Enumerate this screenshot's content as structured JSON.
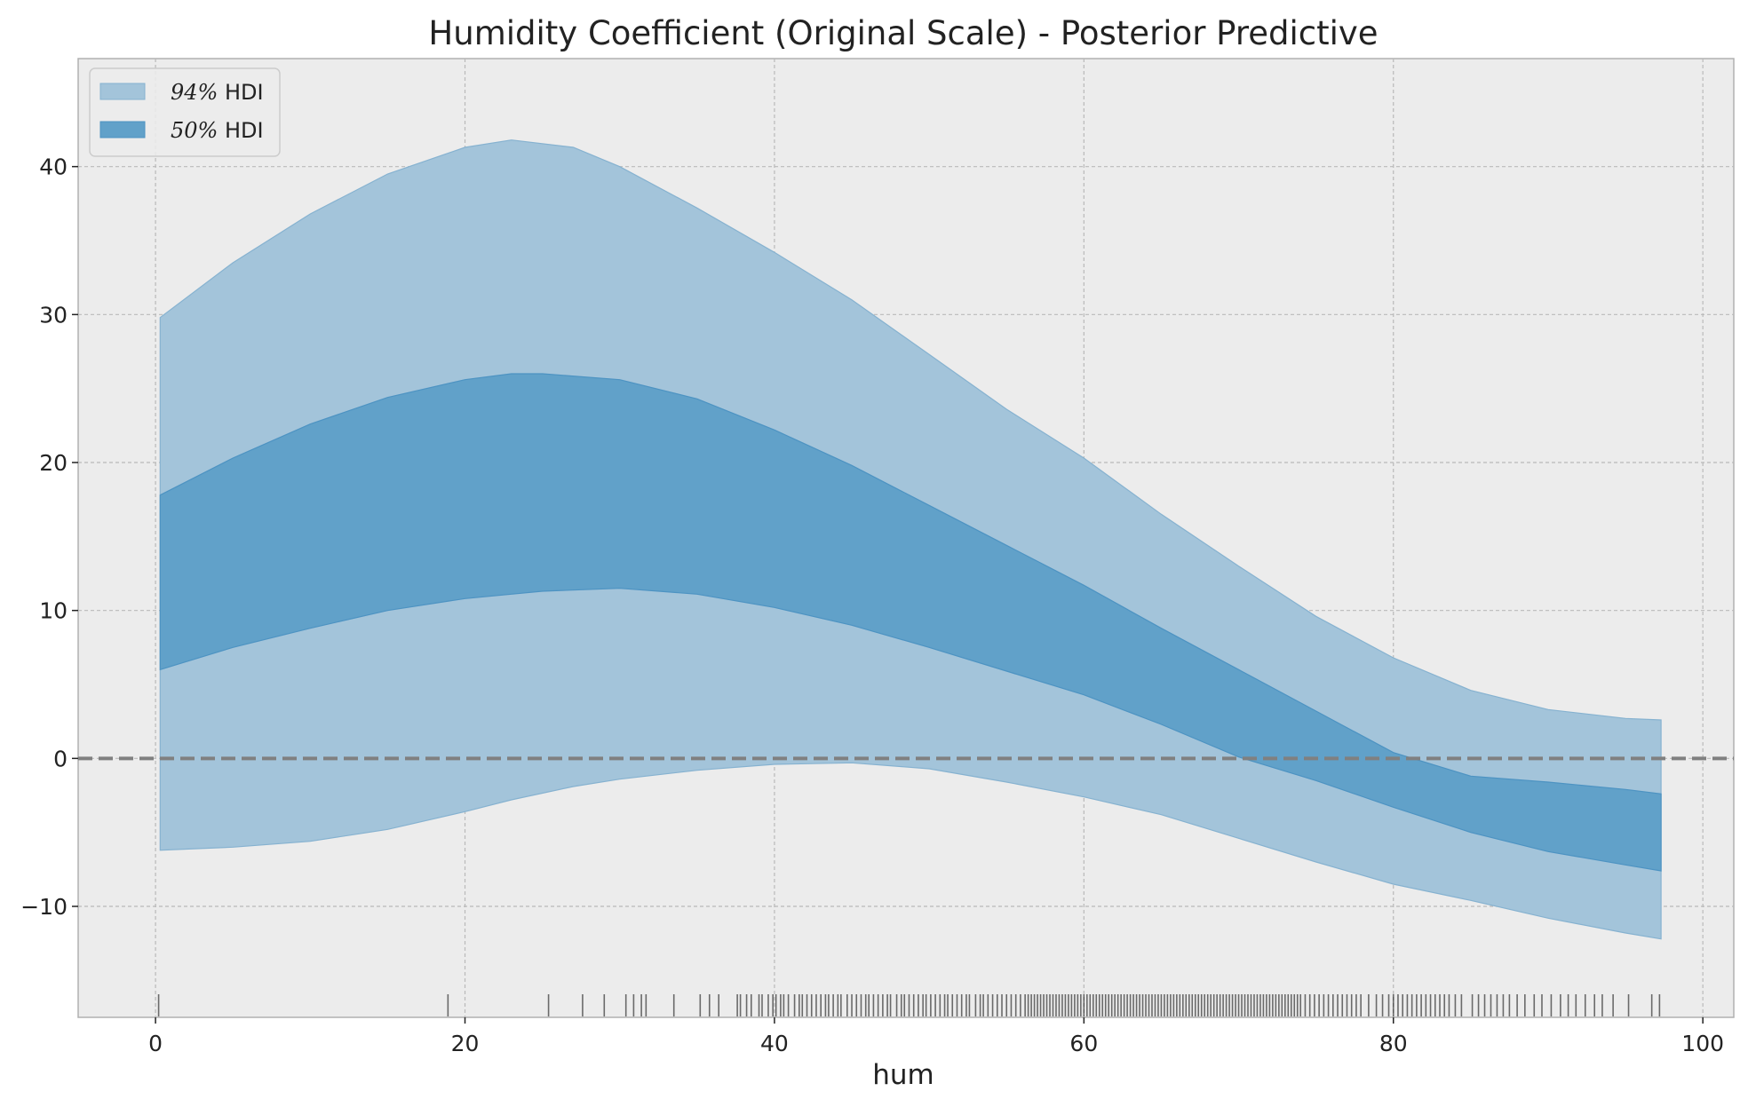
{
  "chart_data": {
    "type": "area",
    "title": "Humidity Coefficient (Original Scale) - Posterior Predictive",
    "xlabel": "hum",
    "ylabel": "",
    "xlim": [
      -5,
      102
    ],
    "ylim": [
      -17.5,
      47.3
    ],
    "x_ticks": [
      0,
      20,
      40,
      60,
      80,
      100
    ],
    "y_ticks": [
      -10,
      0,
      10,
      20,
      30,
      40
    ],
    "grid": true,
    "legend_position": "top-left",
    "colors": {
      "background": "#ececec",
      "band_94": "#a3c4da",
      "band_94_edge": "#86b2d0",
      "band_50": "#61a1c9",
      "band_50_edge": "#4d93c2",
      "reference_line": "#808080",
      "grid": "#b9b9b9",
      "rug": "#000000"
    },
    "reference_line_y": 0,
    "series": [
      {
        "name_math": "94%",
        "name_text": "HDI",
        "x": [
          0.3,
          5,
          10,
          15,
          20,
          23,
          27,
          30,
          35,
          40,
          45,
          50,
          55,
          60,
          65,
          70,
          75,
          80,
          85,
          90,
          95,
          97.3
        ],
        "upper": [
          29.8,
          33.5,
          36.8,
          39.5,
          41.3,
          41.8,
          41.3,
          40.0,
          37.2,
          34.2,
          31.0,
          27.3,
          23.6,
          20.3,
          16.5,
          13.0,
          9.6,
          6.8,
          4.6,
          3.3,
          2.7,
          2.6
        ],
        "lower": [
          -6.2,
          -6.0,
          -5.6,
          -4.8,
          -3.6,
          -2.8,
          -1.9,
          -1.4,
          -0.8,
          -0.4,
          -0.3,
          -0.7,
          -1.6,
          -2.6,
          -3.8,
          -5.4,
          -7.0,
          -8.5,
          -9.6,
          -10.8,
          -11.8,
          -12.2
        ]
      },
      {
        "name_math": "50%",
        "name_text": "HDI",
        "x": [
          0.3,
          5,
          10,
          15,
          20,
          23,
          25,
          30,
          35,
          40,
          45,
          50,
          55,
          60,
          65,
          70,
          75,
          80,
          85,
          90,
          95,
          97.3
        ],
        "upper": [
          17.8,
          20.3,
          22.6,
          24.4,
          25.6,
          26.0,
          26.0,
          25.6,
          24.3,
          22.2,
          19.8,
          17.1,
          14.4,
          11.7,
          8.8,
          6.0,
          3.2,
          0.4,
          -1.2,
          -1.6,
          -2.1,
          -2.4
        ],
        "lower": [
          6.0,
          7.5,
          8.8,
          10.0,
          10.8,
          11.1,
          11.3,
          11.5,
          11.1,
          10.2,
          9.0,
          7.5,
          5.9,
          4.3,
          2.3,
          0.1,
          -1.5,
          -3.3,
          -5.0,
          -6.3,
          -7.2,
          -7.6
        ]
      }
    ],
    "rug_x": [
      0.2,
      18.9,
      25.4,
      27.6,
      29.0,
      30.4,
      30.9,
      31.4,
      31.7,
      33.5,
      35.2,
      35.8,
      36.4,
      37.6,
      37.8,
      38.2,
      38.5,
      39.0,
      39.2,
      39.6,
      39.9,
      40.1,
      40.4,
      40.6,
      40.9,
      41.3,
      41.6,
      41.8,
      42.1,
      42.4,
      42.7,
      43.0,
      43.3,
      43.5,
      43.8,
      44.1,
      44.3,
      44.7,
      45.0,
      45.3,
      45.6,
      45.9,
      46.1,
      46.4,
      46.7,
      47.0,
      47.3,
      47.5,
      47.9,
      48.2,
      48.4,
      48.7,
      49.0,
      49.3,
      49.6,
      49.8,
      50.1,
      50.4,
      50.7,
      51.0,
      51.2,
      51.5,
      51.8,
      52.1,
      52.4,
      52.6,
      53.0,
      53.3,
      53.5,
      53.8,
      54.1,
      54.4,
      54.7,
      55.0,
      55.3,
      55.6,
      55.9,
      56.2,
      56.4,
      56.6,
      56.8,
      57.0,
      57.2,
      57.4,
      57.6,
      57.8,
      58.0,
      58.2,
      58.4,
      58.6,
      58.8,
      59.0,
      59.2,
      59.4,
      59.6,
      59.8,
      60.0,
      60.2,
      60.4,
      60.6,
      60.8,
      61.0,
      61.2,
      61.4,
      61.6,
      61.8,
      62.0,
      62.2,
      62.4,
      62.6,
      62.8,
      63.0,
      63.2,
      63.4,
      63.6,
      63.8,
      64.0,
      64.2,
      64.4,
      64.6,
      64.8,
      65.0,
      65.2,
      65.4,
      65.6,
      65.8,
      66.0,
      66.2,
      66.4,
      66.6,
      66.8,
      67.0,
      67.2,
      67.4,
      67.6,
      67.8,
      68.0,
      68.2,
      68.4,
      68.6,
      68.8,
      69.0,
      69.2,
      69.4,
      69.6,
      69.8,
      70.0,
      70.2,
      70.4,
      70.6,
      70.8,
      71.0,
      71.2,
      71.4,
      71.6,
      71.8,
      72.0,
      72.2,
      72.4,
      72.6,
      72.8,
      73.0,
      73.2,
      73.4,
      73.6,
      73.8,
      74.0,
      74.3,
      74.6,
      74.9,
      75.2,
      75.5,
      75.8,
      76.1,
      76.4,
      76.7,
      77.0,
      77.3,
      77.6,
      77.9,
      78.4,
      78.9,
      79.3,
      79.7,
      80.0,
      80.3,
      80.6,
      80.9,
      81.2,
      81.5,
      81.8,
      82.1,
      82.4,
      82.7,
      83.0,
      83.3,
      83.6,
      84.0,
      84.4,
      85.1,
      85.5,
      85.9,
      86.3,
      86.7,
      87.1,
      87.5,
      88.0,
      88.5,
      89.1,
      89.6,
      90.2,
      90.8,
      91.3,
      91.8,
      92.4,
      93.0,
      93.5,
      94.2,
      95.2,
      96.7,
      97.2
    ]
  }
}
